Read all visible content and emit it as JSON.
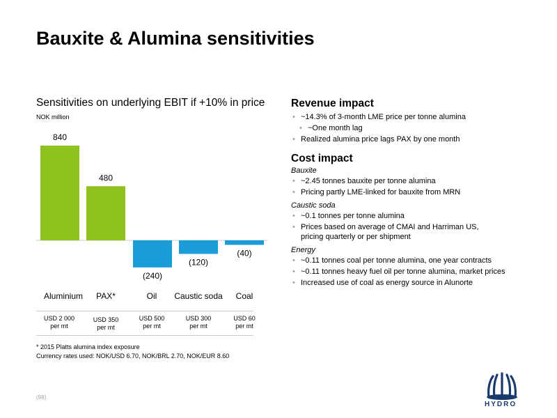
{
  "slide": {
    "title": "Bauxite & Alumina sensitivities",
    "page_number": "(98)",
    "logo_text": "HYDRO"
  },
  "chart": {
    "heading": "Sensitivities on underlying EBIT if +10% in price",
    "unit": "NOK million",
    "sublabels": [
      [
        "USD 2 000",
        "per mt"
      ],
      [
        "USD 350",
        "per mt"
      ],
      [
        "USD 500",
        "per mt"
      ],
      [
        "USD 300",
        "per mt"
      ],
      [
        "USD 60",
        "per mt"
      ]
    ]
  },
  "chart_data": {
    "type": "bar",
    "categories": [
      "Aluminium",
      "PAX*",
      "Oil",
      "Caustic soda",
      "Coal"
    ],
    "values": [
      840,
      480,
      -240,
      -120,
      -40
    ],
    "value_labels": [
      "840",
      "480",
      "(240)",
      "(120)",
      "(40)"
    ],
    "colors": [
      "#8dc21f",
      "#8dc21f",
      "#1a9cd8",
      "#1a9cd8",
      "#1a9cd8"
    ],
    "title": "Sensitivities on underlying EBIT if +10% in price",
    "ylabel": "NOK million",
    "ylim": [
      -240,
      840
    ],
    "grid": false
  },
  "footnotes": {
    "pax": "* 2015 Platts alumina index exposure",
    "currency": "Currency rates used: NOK/USD 6.70, NOK/BRL 2.70, NOK/EUR 8.60"
  },
  "revenue": {
    "heading": "Revenue impact",
    "items": [
      "~14.3% of 3-month LME price per tonne alumina",
      "~One month lag",
      "Realized alumina price lags PAX by one month"
    ]
  },
  "cost": {
    "heading": "Cost impact",
    "bauxite": {
      "label": "Bauxite",
      "items": [
        "~2.45 tonnes bauxite per tonne alumina",
        "Pricing partly LME-linked for bauxite from MRN"
      ]
    },
    "caustic": {
      "label": "Caustic soda",
      "items": [
        "~0.1 tonnes per tonne alumina",
        "Prices based on average of CMAI and Harriman US, pricing quarterly or per shipment"
      ]
    },
    "energy": {
      "label": "Energy",
      "items": [
        "~0.11 tonnes coal per tonne alumina, one year contracts",
        "~0.11 tonnes heavy fuel oil per tonne alumina, market prices",
        "Increased use of coal as energy source in Alunorte"
      ]
    }
  }
}
